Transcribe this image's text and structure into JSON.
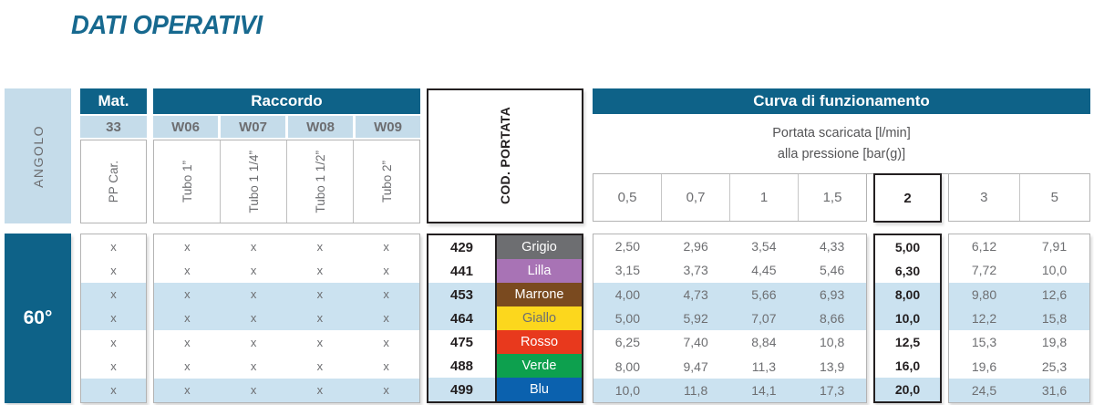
{
  "title": "DATI OPERATIVI",
  "colors": {
    "header_blue": "#0e6288",
    "panel_light_blue": "#c5dcea",
    "row_shade_blue": "#cbe2f0",
    "title_blue": "#17698f",
    "grey_text": "#6d6e71"
  },
  "angolo": {
    "header": "ANGOLO",
    "value": "60°"
  },
  "mat": {
    "header": "Mat.",
    "code": "33",
    "label": "PP Car."
  },
  "raccordo": {
    "header": "Raccordo",
    "columns": [
      {
        "code": "W06",
        "label": "Tubo 1”"
      },
      {
        "code": "W07",
        "label": "Tubo 1 1/4”"
      },
      {
        "code": "W08",
        "label": "Tubo 1 1/2”"
      },
      {
        "code": "W09",
        "label": "Tubo 2”"
      }
    ]
  },
  "cod_portata": {
    "header": "COD. PORTATA"
  },
  "curva": {
    "header": "Curva di funzionamento",
    "subtitle_line1": "Portata scaricata [l/min]",
    "subtitle_line2": "alla pressione [bar(g)]",
    "pressures": [
      "0,5",
      "0,7",
      "1",
      "1,5",
      "2",
      "3",
      "5"
    ],
    "highlighted_pressure": "2"
  },
  "x_mark": "x",
  "rows": [
    {
      "code": "429",
      "color_name": "Grigio",
      "color_hex": "#6d6e71",
      "text_hex": "#ffffff",
      "values": [
        "2,50",
        "2,96",
        "3,54",
        "4,33",
        "5,00",
        "6,12",
        "7,91"
      ]
    },
    {
      "code": "441",
      "color_name": "Lilla",
      "color_hex": "#a873b5",
      "text_hex": "#ffffff",
      "values": [
        "3,15",
        "3,73",
        "4,45",
        "5,46",
        "6,30",
        "7,72",
        "10,0"
      ]
    },
    {
      "code": "453",
      "color_name": "Marrone",
      "color_hex": "#7a4a1f",
      "text_hex": "#ffffff",
      "values": [
        "4,00",
        "4,73",
        "5,66",
        "6,93",
        "8,00",
        "9,80",
        "12,6"
      ]
    },
    {
      "code": "464",
      "color_name": "Giallo",
      "color_hex": "#fcd71d",
      "text_hex": "#6d6e71",
      "values": [
        "5,00",
        "5,92",
        "7,07",
        "8,66",
        "10,0",
        "12,2",
        "15,8"
      ]
    },
    {
      "code": "475",
      "color_name": "Rosso",
      "color_hex": "#e8391d",
      "text_hex": "#ffffff",
      "values": [
        "6,25",
        "7,40",
        "8,84",
        "10,8",
        "12,5",
        "15,3",
        "19,8"
      ]
    },
    {
      "code": "488",
      "color_name": "Verde",
      "color_hex": "#0da04e",
      "text_hex": "#ffffff",
      "values": [
        "8,00",
        "9,47",
        "11,3",
        "13,9",
        "16,0",
        "19,6",
        "25,3"
      ]
    },
    {
      "code": "499",
      "color_name": "Blu",
      "color_hex": "#0b61ae",
      "text_hex": "#ffffff",
      "values": [
        "10,0",
        "11,8",
        "14,1",
        "17,3",
        "20,0",
        "24,5",
        "31,6"
      ]
    }
  ]
}
